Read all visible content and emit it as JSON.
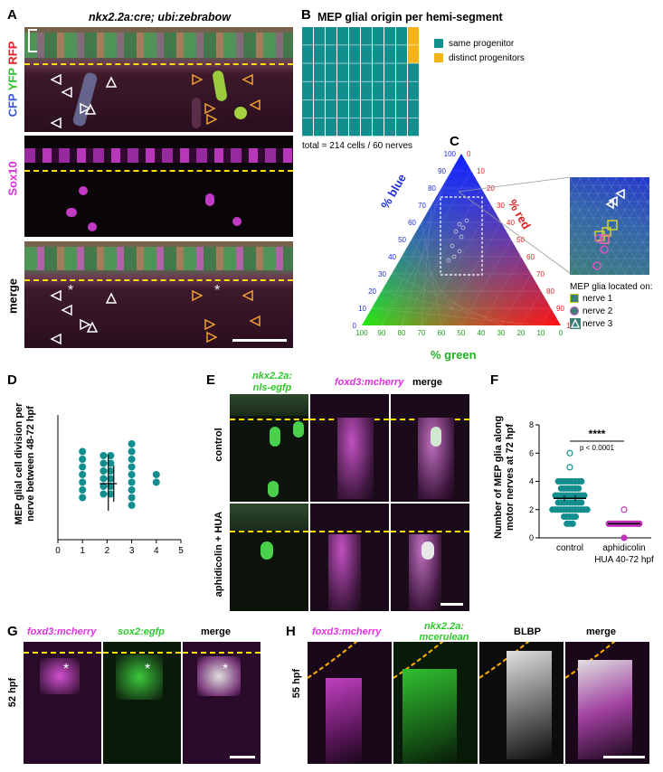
{
  "panelA": {
    "letter": "A",
    "title": "nkx2.2a:cre; ubi:zebrabow",
    "channels": {
      "cfp": "CFP",
      "yfp": "YFP",
      "rfp": "RFP"
    },
    "row2_label": "Sox10",
    "row3_label": "merge",
    "asterisk": "*"
  },
  "panelB": {
    "letter": "B",
    "title": "MEP glial origin per hemi-segment",
    "legend": [
      {
        "label": "same progenitor",
        "color": "#138e8e"
      },
      {
        "label": "distinct progenitors",
        "color": "#f5b31a"
      }
    ],
    "footer": "total = 214 cells / 60 nerves",
    "chart_data": {
      "type": "waffle",
      "rows": 6,
      "cols": 10,
      "total": 60,
      "series": [
        {
          "name": "same progenitor",
          "count": 58
        },
        {
          "name": "distinct progenitors",
          "count": 2
        }
      ]
    }
  },
  "panelC": {
    "letter": "C",
    "axis_blue": "% blue",
    "axis_red": "% red",
    "axis_green": "% green",
    "ticks": [
      "0",
      "10",
      "20",
      "30",
      "40",
      "50",
      "60",
      "70",
      "80",
      "90",
      "100"
    ],
    "legend_title": "MEP glia located on:",
    "legend": [
      {
        "label": "nerve 1",
        "shape": "square",
        "color": "#c8cc34"
      },
      {
        "label": "nerve 2",
        "shape": "circle",
        "color": "#d456c0"
      },
      {
        "label": "nerve 3",
        "shape": "triangle",
        "color": "#ffffff"
      }
    ]
  },
  "panelD": {
    "letter": "D",
    "chart_data": {
      "type": "scatter",
      "ylabel": "MEP glial cell division per nerve between 48-72 hpf",
      "x_ticks": [
        "0",
        "1",
        "2",
        "3",
        "4",
        "5"
      ],
      "xlim": [
        0,
        5
      ],
      "columns": [
        {
          "x": 1,
          "count": 7
        },
        {
          "x": 2,
          "count": 12
        },
        {
          "x": 3,
          "count": 9
        },
        {
          "x": 4,
          "count": 2
        }
      ],
      "mean": 2.05,
      "error": [
        1.7,
        2.4
      ],
      "sd": [
        1.4,
        2.7
      ]
    }
  },
  "panelE": {
    "letter": "E",
    "col1": "nkx2.2a:",
    "col1b": "nls-egfp",
    "col2": "foxd3:mcherry",
    "col3": "merge",
    "row1": "control",
    "row2": "aphidicolin + HUA"
  },
  "panelF": {
    "letter": "F",
    "chart_data": {
      "type": "scatter",
      "ylabel": "Number of MEP glia along motor nerves at 72 hpf",
      "ylim": [
        0,
        8
      ],
      "y_ticks": [
        "0",
        "2",
        "4",
        "6",
        "8"
      ],
      "categories": [
        "control",
        "aphidicolin HUA 40-72 hpf"
      ],
      "cat_line1": [
        "control",
        "aphidicolin"
      ],
      "cat_line2": [
        "",
        "HUA 40-72 hpf"
      ],
      "means": [
        2.8,
        1.0
      ],
      "significance": "****",
      "pvalue": "p < 0.0001"
    }
  },
  "panelG": {
    "letter": "G",
    "col1": "foxd3:mcherry",
    "col2": "sox2:egfp",
    "col3": "merge",
    "row": "52 hpf",
    "asterisk": "*"
  },
  "panelH": {
    "letter": "H",
    "col1": "foxd3:mcherry",
    "col2a": "nkx2.2a:",
    "col2b": "mcerulean",
    "col3": "BLBP",
    "col4": "merge",
    "row": "55 hpf"
  },
  "colors": {
    "teal": "#138e8e",
    "orange": "#f5b31a",
    "magenta": "#e030e0",
    "green": "#22c822",
    "yellow_dash": "#ffe000"
  }
}
